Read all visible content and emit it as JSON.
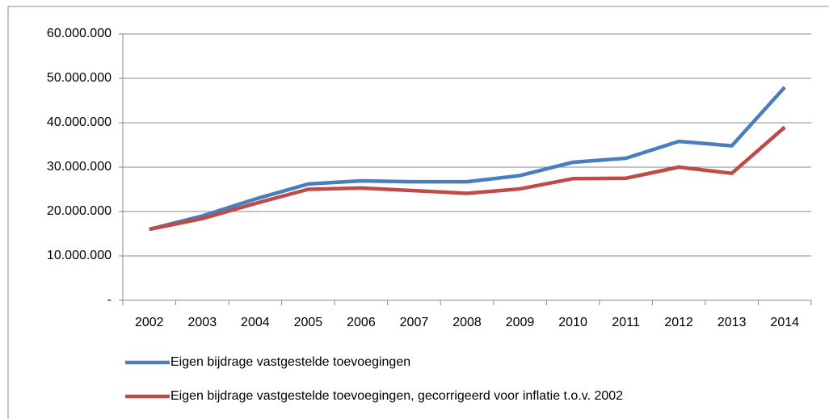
{
  "chart_data": {
    "type": "line",
    "categories": [
      "2002",
      "2003",
      "2004",
      "2005",
      "2006",
      "2007",
      "2008",
      "2009",
      "2010",
      "2011",
      "2012",
      "2013",
      "2014"
    ],
    "series": [
      {
        "name": "Eigen bijdrage vastgestelde toevoegingen",
        "color": "#4a7ebb",
        "values": [
          16000000,
          19000000,
          22800000,
          26200000,
          26900000,
          26700000,
          26700000,
          28100000,
          31100000,
          32000000,
          35800000,
          34800000,
          48000000
        ]
      },
      {
        "name": "Eigen bijdrage vastgestelde toevoegingen, gecorrigeerd voor inflatie t.o.v. 2002",
        "color": "#be4b48",
        "values": [
          16000000,
          18400000,
          21800000,
          25000000,
          25300000,
          24700000,
          24100000,
          25100000,
          27400000,
          27500000,
          30000000,
          28600000,
          39000000
        ]
      }
    ],
    "ylim": [
      0,
      60000000
    ],
    "yticks": [
      {
        "value": 0,
        "label": "-"
      },
      {
        "value": 10000000,
        "label": "10.000.000"
      },
      {
        "value": 20000000,
        "label": "20.000.000"
      },
      {
        "value": 30000000,
        "label": "30.000.000"
      },
      {
        "value": 40000000,
        "label": "40.000.000"
      },
      {
        "value": 50000000,
        "label": "50.000.000"
      },
      {
        "value": 60000000,
        "label": "60.000.000"
      }
    ],
    "grid": true,
    "legend": "bottom"
  }
}
